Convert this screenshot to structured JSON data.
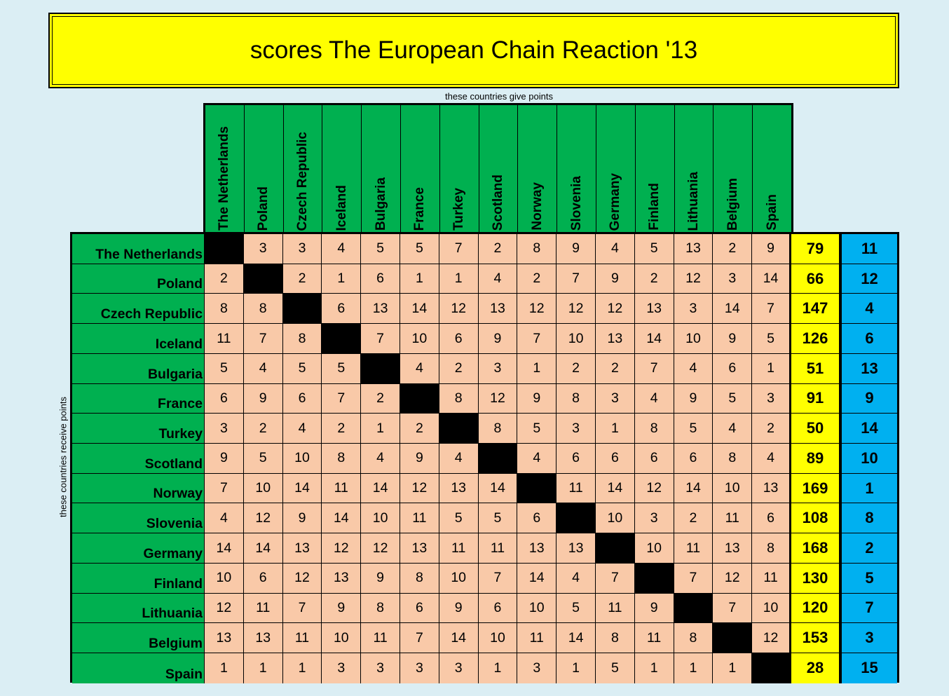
{
  "title": "scores The European Chain Reaction '13",
  "give_label": "these countries give points",
  "receive_label": "these countries receive points",
  "countries": [
    "The Netherlands",
    "Poland",
    "Czech Republic",
    "Iceland",
    "Bulgaria",
    "France",
    "Turkey",
    "Scotland",
    "Norway",
    "Slovenia",
    "Germany",
    "Finland",
    "Lithuania",
    "Belgium",
    "Spain"
  ],
  "scores": [
    [
      null,
      "3",
      "3",
      "4",
      "5",
      "5",
      "7",
      "2",
      "8",
      "9",
      "4",
      "5",
      "13",
      "2",
      "9"
    ],
    [
      "2",
      null,
      "2",
      "1",
      "6",
      "1",
      "1",
      "4",
      "2",
      "7",
      "9",
      "2",
      "12",
      "3",
      "14"
    ],
    [
      "8",
      "8",
      null,
      "6",
      "13",
      "14",
      "12",
      "13",
      "12",
      "12",
      "12",
      "13",
      "3",
      "14",
      "7"
    ],
    [
      "11",
      "7",
      "8",
      null,
      "7",
      "10",
      "6",
      "9",
      "7",
      "10",
      "13",
      "14",
      "10",
      "9",
      "5"
    ],
    [
      "5",
      "4",
      "5",
      "5",
      null,
      "4",
      "2",
      "3",
      "1",
      "2",
      "2",
      "7",
      "4",
      "6",
      "1"
    ],
    [
      "6",
      "9",
      "6",
      "7",
      "2",
      null,
      "8",
      "12",
      "9",
      "8",
      "3",
      "4",
      "9",
      "5",
      "3"
    ],
    [
      "3",
      "2",
      "4",
      "2",
      "1",
      "2",
      null,
      "8",
      "5",
      "3",
      "1",
      "8",
      "5",
      "4",
      "2"
    ],
    [
      "9",
      "5",
      "10",
      "8",
      "4",
      "9",
      "4",
      null,
      "4",
      "6",
      "6",
      "6",
      "6",
      "8",
      "4"
    ],
    [
      "7",
      "10",
      "14",
      "11",
      "14",
      "12",
      "13",
      "14",
      null,
      "11",
      "14",
      "12",
      "14",
      "10",
      "13"
    ],
    [
      "4",
      "12",
      "9",
      "14",
      "10",
      "11",
      "5",
      "5",
      "6",
      null,
      "10",
      "3",
      "2",
      "11",
      "6"
    ],
    [
      "14",
      "14",
      "13",
      "12",
      "12",
      "13",
      "11",
      "11",
      "13",
      "13",
      null,
      "10",
      "11",
      "13",
      "8"
    ],
    [
      "10",
      "6",
      "12",
      "13",
      "9",
      "8",
      "10",
      "7",
      "14",
      "4",
      "7",
      null,
      "7",
      "12",
      "11"
    ],
    [
      "12",
      "11",
      "7",
      "9",
      "8",
      "6",
      "9",
      "6",
      "10",
      "5",
      "11",
      "9",
      null,
      "7",
      "10"
    ],
    [
      "13",
      "13",
      "11",
      "10",
      "11",
      "7",
      "14",
      "10",
      "11",
      "14",
      "8",
      "11",
      "8",
      null,
      "12"
    ],
    [
      "1",
      "1",
      "1",
      "3",
      "3",
      "3",
      "3",
      "1",
      "3",
      "1",
      "5",
      "1",
      "1",
      "1",
      null
    ]
  ],
  "totals": [
    "79",
    "66",
    "147",
    "126",
    "51",
    "91",
    "50",
    "89",
    "169",
    "108",
    "168",
    "130",
    "120",
    "153",
    "28"
  ],
  "ranks": [
    "11",
    "12",
    "4",
    "6",
    "13",
    "9",
    "14",
    "10",
    "1",
    "8",
    "2",
    "5",
    "7",
    "3",
    "15"
  ],
  "colors": {
    "background": "#dbeef4",
    "title": "#ffff00",
    "header": "#00b050",
    "cell": "#f9c9a8",
    "diagonal": "#000000",
    "total": "#ffff00",
    "rank": "#00b0f0"
  }
}
